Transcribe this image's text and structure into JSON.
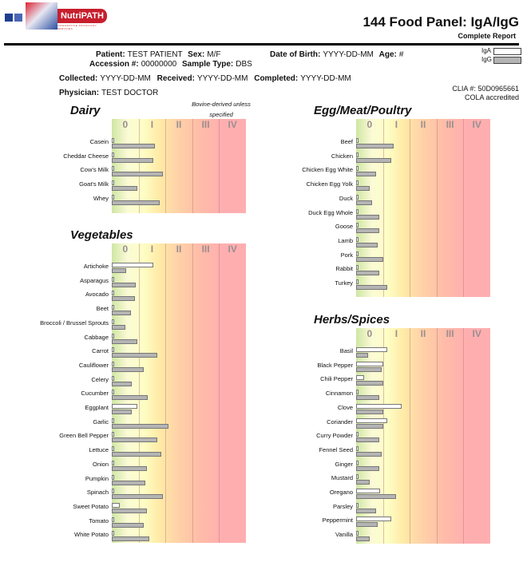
{
  "header": {
    "brand": "NutriPATH",
    "brand_tagline": "INTEGRATIVE PATHOLOGY SERVICES",
    "title": "144 Food Panel: IgA/IgG",
    "subtitle": "Complete Report"
  },
  "patient": {
    "patient_label": "Patient:",
    "patient_value": "TEST PATIENT",
    "sex_label": "Sex:",
    "sex_value": "M/F",
    "dob_label": "Date of Birth:",
    "dob_value": "YYYY-DD-MM",
    "age_label": "Age:",
    "age_value": "#",
    "accession_label": "Accession #:",
    "accession_value": "00000000",
    "sample_label": "Sample Type:",
    "sample_value": "DBS",
    "collected_label": "Collected:",
    "collected_value": "YYYY-DD-MM",
    "received_label": "Received:",
    "received_value": "YYYY-DD-MM",
    "completed_label": "Completed:",
    "completed_value": "YYYY-DD-MM",
    "physician_label": "Physician:",
    "physician_value": "TEST DOCTOR"
  },
  "legend": {
    "iga": "IgA",
    "igg": "IgG"
  },
  "clia": {
    "line1": "CLIA #: 50D0965661",
    "line2": "COLA accredited"
  },
  "colors": {
    "iga_fill": "#ffffff",
    "igg_fill": "#b4b4b4",
    "brand_red": "#c71e2d"
  },
  "class_labels": [
    "0",
    "I",
    "II",
    "III",
    "IV"
  ],
  "chart_data": {
    "type": "bar",
    "unit": "class (0–IV)",
    "xlim": [
      0,
      5
    ],
    "series": [
      {
        "name": "IgA"
      },
      {
        "name": "IgG"
      }
    ],
    "sections": {
      "dairy": {
        "title": "Dairy",
        "note": "Bovine-derived unless specified",
        "items": [
          {
            "name": "Casein",
            "iga": 0.1,
            "igg": 1.6
          },
          {
            "name": "Cheddar Cheese",
            "iga": 0.1,
            "igg": 1.55
          },
          {
            "name": "Cow's Milk",
            "iga": 0.1,
            "igg": 1.9
          },
          {
            "name": "Goat's Milk",
            "iga": 0.1,
            "igg": 0.95
          },
          {
            "name": "Whey",
            "iga": 0.1,
            "igg": 1.8
          }
        ]
      },
      "vegetables": {
        "title": "Vegetables",
        "items": [
          {
            "name": "Artichoke",
            "iga": 1.55,
            "igg": 0.55
          },
          {
            "name": "Asparagus",
            "iga": 0.1,
            "igg": 0.9
          },
          {
            "name": "Avocado",
            "iga": 0.1,
            "igg": 0.85
          },
          {
            "name": "Beet",
            "iga": 0.1,
            "igg": 0.7
          },
          {
            "name": "Broccoli / Brussel Sprouts",
            "iga": 0.1,
            "igg": 0.5
          },
          {
            "name": "Cabbage",
            "iga": 0.1,
            "igg": 0.95
          },
          {
            "name": "Carrot",
            "iga": 0.1,
            "igg": 1.7
          },
          {
            "name": "Cauliflower",
            "iga": 0.1,
            "igg": 1.2
          },
          {
            "name": "Celery",
            "iga": 0.1,
            "igg": 0.75
          },
          {
            "name": "Cucumber",
            "iga": 0.1,
            "igg": 1.35
          },
          {
            "name": "Eggplant",
            "iga": 0.95,
            "igg": 0.75
          },
          {
            "name": "Garlic",
            "iga": 0.1,
            "igg": 2.1
          },
          {
            "name": "Green Bell Pepper",
            "iga": 0.1,
            "igg": 1.7
          },
          {
            "name": "Lettuce",
            "iga": 0.1,
            "igg": 1.85
          },
          {
            "name": "Onion",
            "iga": 0.1,
            "igg": 1.3
          },
          {
            "name": "Pumpkin",
            "iga": 0.1,
            "igg": 1.25
          },
          {
            "name": "Spinach",
            "iga": 0.1,
            "igg": 1.9
          },
          {
            "name": "Sweet Potato",
            "iga": 0.3,
            "igg": 1.3
          },
          {
            "name": "Tomato",
            "iga": 0.1,
            "igg": 1.2
          },
          {
            "name": "White Potato",
            "iga": 0.1,
            "igg": 1.4
          }
        ]
      },
      "egg_meat_poultry": {
        "title": "Egg/Meat/Poultry",
        "items": [
          {
            "name": "Beef",
            "iga": 0.1,
            "igg": 1.4
          },
          {
            "name": "Chicken",
            "iga": 0.1,
            "igg": 1.3
          },
          {
            "name": "Chicken Egg White",
            "iga": 0.1,
            "igg": 0.75
          },
          {
            "name": "Chicken Egg Yolk",
            "iga": 0.1,
            "igg": 0.5
          },
          {
            "name": "Duck",
            "iga": 0.1,
            "igg": 0.6
          },
          {
            "name": "Duck Egg Whole",
            "iga": 0.1,
            "igg": 0.85
          },
          {
            "name": "Goose",
            "iga": 0.1,
            "igg": 0.85
          },
          {
            "name": "Lamb",
            "iga": 0.1,
            "igg": 0.8
          },
          {
            "name": "Pork",
            "iga": 0.1,
            "igg": 1.0
          },
          {
            "name": "Rabbit",
            "iga": 0.1,
            "igg": 0.85
          },
          {
            "name": "Turkey",
            "iga": 0.1,
            "igg": 1.15
          }
        ]
      },
      "herbs_spices": {
        "title": "Herbs/Spices",
        "items": [
          {
            "name": "Basil",
            "iga": 1.15,
            "igg": 0.45
          },
          {
            "name": "Black Pepper",
            "iga": 1.0,
            "igg": 0.95
          },
          {
            "name": "Chili Pepper",
            "iga": 0.3,
            "igg": 1.0
          },
          {
            "name": "Cinnamon",
            "iga": 0.1,
            "igg": 0.85
          },
          {
            "name": "Clove",
            "iga": 1.7,
            "igg": 1.0
          },
          {
            "name": "Coriander",
            "iga": 1.15,
            "igg": 1.0
          },
          {
            "name": "Curry Powder",
            "iga": 0.1,
            "igg": 0.85
          },
          {
            "name": "Fennel Seed",
            "iga": 0.1,
            "igg": 0.95
          },
          {
            "name": "Ginger",
            "iga": 0.1,
            "igg": 0.85
          },
          {
            "name": "Mustard",
            "iga": 0.1,
            "igg": 0.5
          },
          {
            "name": "Oregano",
            "iga": 0.9,
            "igg": 1.5
          },
          {
            "name": "Parsley",
            "iga": 0.1,
            "igg": 0.75
          },
          {
            "name": "Peppermint",
            "iga": 1.3,
            "igg": 0.8
          },
          {
            "name": "Vanilla",
            "iga": 0.1,
            "igg": 0.5
          }
        ]
      }
    }
  }
}
